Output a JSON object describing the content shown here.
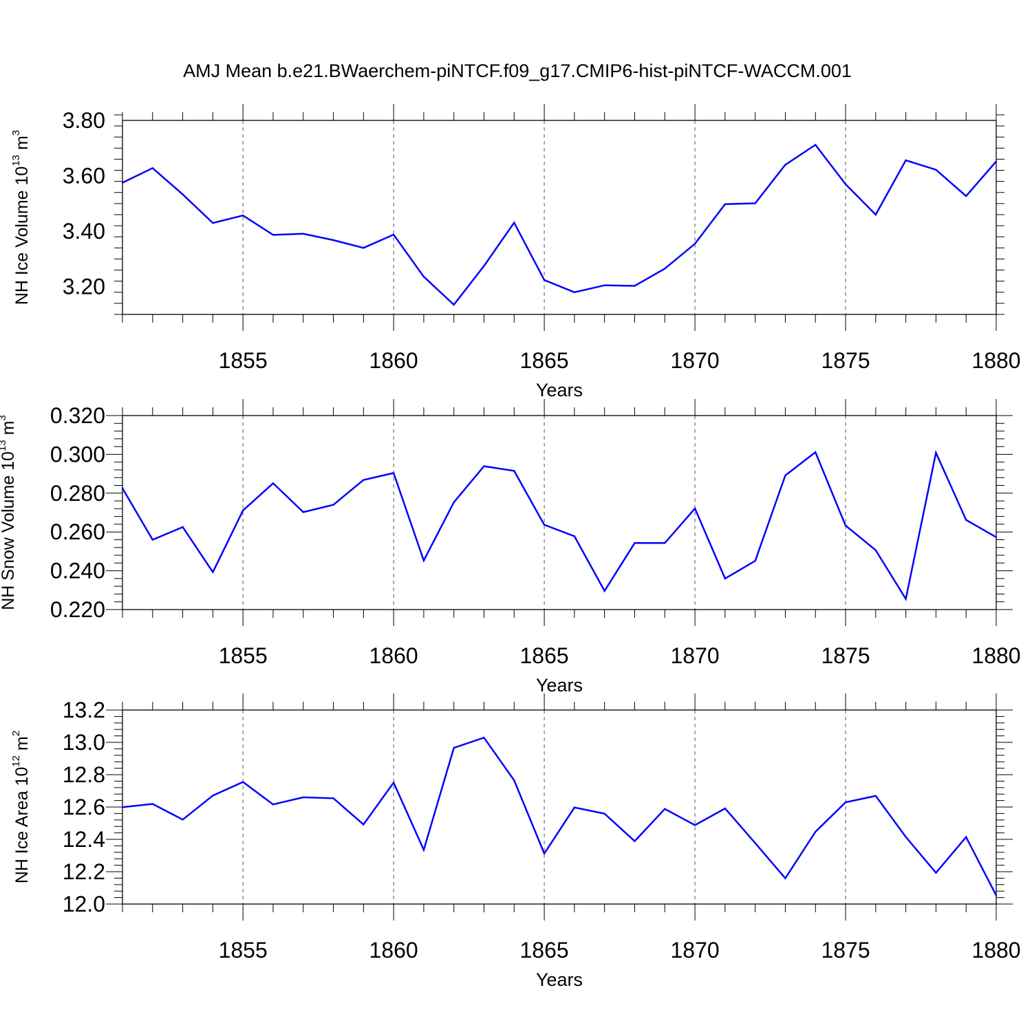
{
  "title": "AMJ Mean b.e21.BWaerchem-piNTCF.f09_g17.CMIP6-hist-piNTCF-WACCM.001",
  "colors": {
    "series": "#0000ff",
    "axis": "#000000",
    "grid": "#555555",
    "background": "#ffffff"
  },
  "chart_data": [
    {
      "type": "line",
      "name": "NH Ice Volume",
      "ylabel": {
        "text": "NH Ice Volume 10",
        "exponent": "13",
        "unit": " m",
        "unit_exponent": "3"
      },
      "xlabel": "Years",
      "xlim": [
        1851,
        1880
      ],
      "ylim": [
        3.1,
        3.8
      ],
      "yticks": [
        3.2,
        3.4,
        3.6,
        3.8
      ],
      "yticklabels": [
        "3.20",
        "3.40",
        "3.60",
        "3.80"
      ],
      "xticks": [
        1855,
        1860,
        1865,
        1870,
        1875,
        1880
      ],
      "xticklabels": [
        "1855",
        "1860",
        "1865",
        "1870",
        "1875",
        "1880"
      ],
      "x": [
        1851,
        1852,
        1853,
        1854,
        1855,
        1856,
        1857,
        1858,
        1859,
        1860,
        1861,
        1862,
        1863,
        1864,
        1865,
        1866,
        1867,
        1868,
        1869,
        1870,
        1871,
        1872,
        1873,
        1874,
        1875,
        1876,
        1877,
        1878,
        1879,
        1880
      ],
      "series": [
        {
          "name": "NH Ice Volume",
          "values": [
            3.575,
            3.628,
            3.533,
            3.43,
            3.457,
            3.387,
            3.391,
            3.368,
            3.34,
            3.388,
            3.236,
            3.135,
            3.275,
            3.431,
            3.224,
            3.18,
            3.205,
            3.203,
            3.265,
            3.355,
            3.498,
            3.501,
            3.64,
            3.712,
            3.57,
            3.46,
            3.656,
            3.622,
            3.527,
            3.652
          ]
        }
      ]
    },
    {
      "type": "line",
      "name": "NH Snow Volume",
      "ylabel": {
        "text": "NH Snow Volume 10",
        "exponent": "13",
        "unit": " m",
        "unit_exponent": "3"
      },
      "xlabel": "Years",
      "xlim": [
        1851,
        1880
      ],
      "ylim": [
        0.22,
        0.32
      ],
      "yticks": [
        0.22,
        0.24,
        0.26,
        0.28,
        0.3,
        0.32
      ],
      "yticklabels": [
        "0.220",
        "0.240",
        "0.260",
        "0.280",
        "0.300",
        "0.320"
      ],
      "xticks": [
        1855,
        1860,
        1865,
        1870,
        1875,
        1880
      ],
      "xticklabels": [
        "1855",
        "1860",
        "1865",
        "1870",
        "1875",
        "1880"
      ],
      "x": [
        1851,
        1852,
        1853,
        1854,
        1855,
        1856,
        1857,
        1858,
        1859,
        1860,
        1861,
        1862,
        1863,
        1864,
        1865,
        1866,
        1867,
        1868,
        1869,
        1870,
        1871,
        1872,
        1873,
        1874,
        1875,
        1876,
        1877,
        1878,
        1879,
        1880
      ],
      "series": [
        {
          "name": "NH Snow Volume",
          "values": [
            0.2825,
            0.256,
            0.2625,
            0.2393,
            0.2711,
            0.2851,
            0.2702,
            0.274,
            0.2868,
            0.2904,
            0.2453,
            0.2753,
            0.2939,
            0.2915,
            0.2637,
            0.2578,
            0.2296,
            0.2543,
            0.2543,
            0.2721,
            0.236,
            0.2451,
            0.2891,
            0.3011,
            0.2633,
            0.2506,
            0.2255,
            0.3008,
            0.2662,
            0.2573
          ]
        }
      ]
    },
    {
      "type": "line",
      "name": "NH Ice Area",
      "ylabel": {
        "text": "NH Ice Area 10",
        "exponent": "12",
        "unit": " m",
        "unit_exponent": "2"
      },
      "xlabel": "Years",
      "xlim": [
        1851,
        1880
      ],
      "ylim": [
        12.0,
        13.2
      ],
      "yticks": [
        12.0,
        12.2,
        12.4,
        12.6,
        12.8,
        13.0,
        13.2
      ],
      "yticklabels": [
        "12.0",
        "12.2",
        "12.4",
        "12.6",
        "12.8",
        "13.0",
        "13.2"
      ],
      "xticks": [
        1855,
        1860,
        1865,
        1870,
        1875,
        1880
      ],
      "xticklabels": [
        "1855",
        "1860",
        "1865",
        "1870",
        "1875",
        "1880"
      ],
      "x": [
        1851,
        1852,
        1853,
        1854,
        1855,
        1856,
        1857,
        1858,
        1859,
        1860,
        1861,
        1862,
        1863,
        1864,
        1865,
        1866,
        1867,
        1868,
        1869,
        1870,
        1871,
        1872,
        1873,
        1874,
        1875,
        1876,
        1877,
        1878,
        1879,
        1880
      ],
      "series": [
        {
          "name": "NH Ice Area",
          "values": [
            12.599,
            12.619,
            12.522,
            12.671,
            12.755,
            12.616,
            12.66,
            12.654,
            12.492,
            12.751,
            12.335,
            12.966,
            13.029,
            12.765,
            12.312,
            12.597,
            12.559,
            12.389,
            12.588,
            12.488,
            12.591,
            12.377,
            12.159,
            12.447,
            12.629,
            12.669,
            12.415,
            12.193,
            12.414,
            12.053
          ]
        }
      ]
    }
  ]
}
